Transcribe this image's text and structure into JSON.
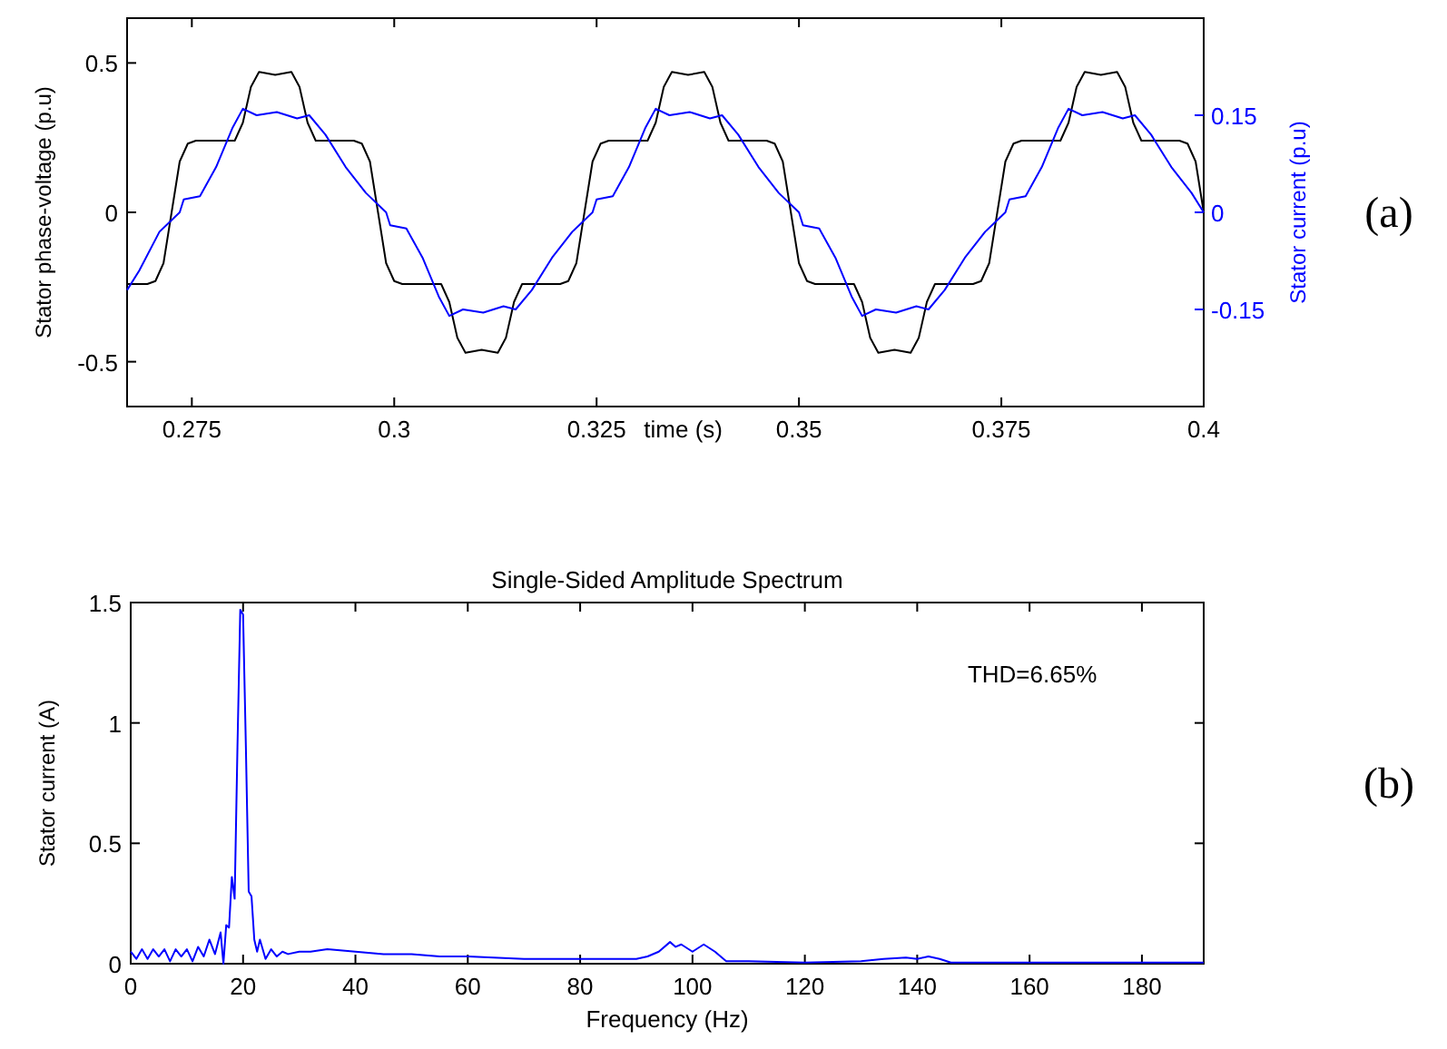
{
  "chart_data": [
    {
      "type": "line",
      "xlabel": "time (s)",
      "ylabel": "Stator phase-voltage (p.u)",
      "y2label": "Stator current (p.u)",
      "xlim": [
        0.267,
        0.4
      ],
      "xticks": [
        0.275,
        0.3,
        0.325,
        0.35,
        0.375,
        0.4
      ],
      "ylim": [
        -0.65,
        0.65
      ],
      "yticks": [
        -0.5,
        0,
        0.5
      ],
      "y2lim": [
        -0.3,
        0.3
      ],
      "y2ticks": [
        -0.15,
        0,
        0.15
      ],
      "grid": false,
      "annotations": [
        "(a)"
      ],
      "series": [
        {
          "color": "#000000",
          "x": [
            0.267,
            0.2695,
            0.2705,
            0.2715,
            0.2725,
            0.2735,
            0.2745,
            0.2755,
            0.2803,
            0.2813,
            0.2823,
            0.2833,
            0.2853,
            0.2873,
            0.2883,
            0.2893,
            0.2903,
            0.295,
            0.296,
            0.297,
            0.298,
            0.299,
            0.3,
            0.301,
            0.3058,
            0.3068,
            0.3078,
            0.3088,
            0.3108,
            0.3128,
            0.3138,
            0.3148,
            0.3158,
            0.3205,
            0.3215,
            0.3225,
            0.3235,
            0.3245,
            0.3255,
            0.3265,
            0.3313,
            0.3323,
            0.3333,
            0.3343,
            0.3363,
            0.3383,
            0.3393,
            0.3403,
            0.3413,
            0.346,
            0.347,
            0.348,
            0.349,
            0.35,
            0.351,
            0.352,
            0.3568,
            0.3578,
            0.3588,
            0.3598,
            0.3618,
            0.3638,
            0.3648,
            0.3658,
            0.3668,
            0.3715,
            0.3725,
            0.3735,
            0.3745,
            0.3755,
            0.3765,
            0.3775,
            0.3823,
            0.3833,
            0.3843,
            0.3853,
            0.3873,
            0.3893,
            0.3903,
            0.3913,
            0.3923,
            0.397,
            0.398,
            0.399,
            0.4
          ],
          "values": [
            -0.24,
            -0.24,
            -0.23,
            -0.17,
            0,
            0.17,
            0.23,
            0.24,
            0.24,
            0.3,
            0.42,
            0.47,
            0.46,
            0.47,
            0.42,
            0.3,
            0.24,
            0.24,
            0.23,
            0.17,
            0,
            -0.17,
            -0.23,
            -0.24,
            -0.24,
            -0.3,
            -0.42,
            -0.47,
            -0.46,
            -0.47,
            -0.42,
            -0.3,
            -0.24,
            -0.24,
            -0.23,
            -0.17,
            0,
            0.17,
            0.23,
            0.24,
            0.24,
            0.3,
            0.42,
            0.47,
            0.46,
            0.47,
            0.42,
            0.3,
            0.24,
            0.24,
            0.23,
            0.17,
            0,
            -0.17,
            -0.23,
            -0.24,
            -0.24,
            -0.3,
            -0.42,
            -0.47,
            -0.46,
            -0.47,
            -0.42,
            -0.3,
            -0.24,
            -0.24,
            -0.23,
            -0.17,
            0,
            0.17,
            0.23,
            0.24,
            0.24,
            0.3,
            0.42,
            0.47,
            0.46,
            0.47,
            0.42,
            0.3,
            0.24,
            0.24,
            0.23,
            0.17,
            0
          ]
        },
        {
          "color": "#0000ff",
          "axis": "y2",
          "x": [
            0.267,
            0.2685,
            0.271,
            0.2735,
            0.274,
            0.276,
            0.278,
            0.28,
            0.2813,
            0.283,
            0.2855,
            0.288,
            0.2895,
            0.2915,
            0.294,
            0.2965,
            0.299,
            0.2995,
            0.3015,
            0.3035,
            0.3055,
            0.3068,
            0.3085,
            0.311,
            0.3135,
            0.315,
            0.317,
            0.3195,
            0.322,
            0.3245,
            0.325,
            0.327,
            0.329,
            0.331,
            0.3323,
            0.334,
            0.3365,
            0.339,
            0.3405,
            0.3425,
            0.345,
            0.3475,
            0.35,
            0.3505,
            0.3525,
            0.3545,
            0.3565,
            0.3578,
            0.3595,
            0.362,
            0.3645,
            0.366,
            0.368,
            0.3705,
            0.373,
            0.3755,
            0.376,
            0.378,
            0.38,
            0.382,
            0.3833,
            0.385,
            0.3875,
            0.39,
            0.3915,
            0.3935,
            0.396,
            0.3985,
            0.4
          ],
          "values": [
            -0.12,
            -0.09,
            -0.03,
            0,
            0.02,
            0.025,
            0.07,
            0.13,
            0.16,
            0.15,
            0.155,
            0.145,
            0.15,
            0.12,
            0.07,
            0.03,
            0,
            -0.02,
            -0.025,
            -0.07,
            -0.13,
            -0.16,
            -0.15,
            -0.155,
            -0.145,
            -0.15,
            -0.12,
            -0.07,
            -0.03,
            0,
            0.02,
            0.025,
            0.07,
            0.13,
            0.16,
            0.15,
            0.155,
            0.145,
            0.15,
            0.12,
            0.07,
            0.03,
            0,
            -0.02,
            -0.025,
            -0.07,
            -0.13,
            -0.16,
            -0.15,
            -0.155,
            -0.145,
            -0.15,
            -0.12,
            -0.07,
            -0.03,
            0,
            0.02,
            0.025,
            0.07,
            0.13,
            0.16,
            0.15,
            0.155,
            0.145,
            0.15,
            0.12,
            0.07,
            0.03,
            0
          ]
        }
      ]
    },
    {
      "type": "line",
      "title": "Single-Sided Amplitude Spectrum",
      "xlabel": "Frequency (Hz)",
      "ylabel": "Stator current (A)",
      "xlim": [
        0,
        191
      ],
      "xticks": [
        0,
        20,
        40,
        60,
        80,
        100,
        120,
        140,
        160,
        180
      ],
      "ylim": [
        0,
        1.5
      ],
      "yticks": [
        0,
        0.5,
        1,
        1.5
      ],
      "grid": false,
      "annotations": [
        "THD=6.65%",
        "(b)"
      ],
      "series": [
        {
          "color": "#0000ff",
          "x": [
            0,
            1,
            2,
            3,
            4,
            5,
            6,
            7,
            8,
            9,
            10,
            11,
            12,
            13,
            14,
            15,
            16,
            16.5,
            17,
            17.5,
            18,
            18.5,
            19,
            19.5,
            20,
            20.5,
            21,
            21.5,
            22,
            22.5,
            23,
            24,
            25,
            26,
            27,
            28,
            30,
            32,
            35,
            40,
            45,
            50,
            55,
            60,
            70,
            80,
            90,
            92,
            94,
            96,
            97,
            98,
            100,
            102,
            104,
            106,
            110,
            120,
            130,
            134,
            138,
            140,
            142,
            144,
            146,
            160,
            191
          ],
          "values": [
            0.05,
            0.02,
            0.06,
            0.02,
            0.06,
            0.03,
            0.06,
            0.01,
            0.06,
            0.03,
            0.06,
            0.01,
            0.07,
            0.03,
            0.1,
            0.04,
            0.13,
            0,
            0.16,
            0.15,
            0.36,
            0.27,
            0.9,
            1.47,
            1.45,
            0.9,
            0.3,
            0.28,
            0.1,
            0.05,
            0.1,
            0.02,
            0.06,
            0.03,
            0.05,
            0.04,
            0.05,
            0.05,
            0.06,
            0.05,
            0.04,
            0.04,
            0.03,
            0.03,
            0.02,
            0.02,
            0.02,
            0.03,
            0.05,
            0.09,
            0.07,
            0.08,
            0.05,
            0.08,
            0.05,
            0.01,
            0.01,
            0.005,
            0.01,
            0.02,
            0.025,
            0.02,
            0.03,
            0.02,
            0.005,
            0.005,
            0.005
          ]
        }
      ]
    }
  ]
}
